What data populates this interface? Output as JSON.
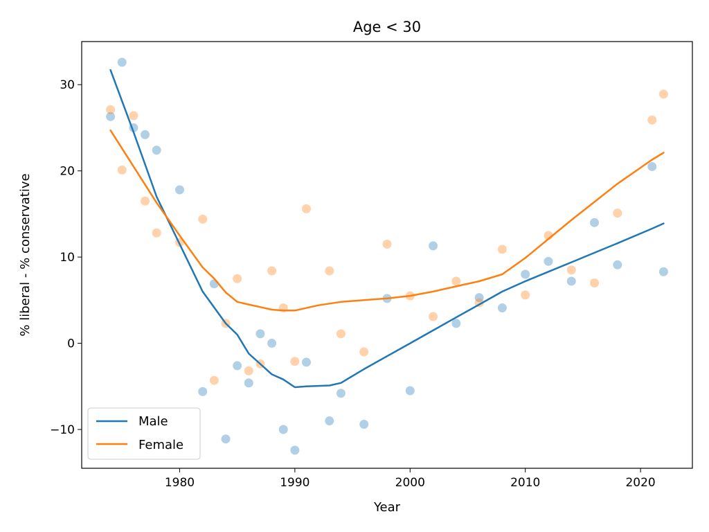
{
  "chart_data": {
    "type": "scatter",
    "title": "Age < 30",
    "xlabel": "Year",
    "ylabel": "% liberal - % conservative",
    "xlim": [
      1971.5,
      2024.5
    ],
    "ylim": [
      -14.5,
      35
    ],
    "xticks": [
      1980,
      1990,
      2000,
      2010,
      2020
    ],
    "xtick_labels": [
      "1980",
      "1990",
      "2000",
      "2010",
      "2020"
    ],
    "yticks": [
      -10,
      0,
      10,
      20,
      30
    ],
    "ytick_labels": [
      "−10",
      "0",
      "10",
      "20",
      "30"
    ],
    "grid": false,
    "legend_position": "lower-left",
    "legend": [
      "Male",
      "Female"
    ],
    "colors": {
      "Male": "#1f77b4",
      "Female": "#ff7f0e"
    },
    "series": [
      {
        "name": "Male",
        "kind": "scatter",
        "color": "#1f77b4",
        "points": [
          [
            1974,
            26.3
          ],
          [
            1975,
            32.6
          ],
          [
            1976,
            25.0
          ],
          [
            1977,
            24.2
          ],
          [
            1978,
            22.4
          ],
          [
            1980,
            17.8
          ],
          [
            1982,
            -5.6
          ],
          [
            1983,
            6.9
          ],
          [
            1984,
            -11.1
          ],
          [
            1985,
            -2.6
          ],
          [
            1986,
            -4.6
          ],
          [
            1987,
            1.1
          ],
          [
            1988,
            0.0
          ],
          [
            1989,
            -10.0
          ],
          [
            1990,
            -12.4
          ],
          [
            1991,
            -2.2
          ],
          [
            1993,
            -9.0
          ],
          [
            1994,
            -5.8
          ],
          [
            1996,
            -9.4
          ],
          [
            1998,
            5.2
          ],
          [
            2000,
            -5.5
          ],
          [
            2002,
            11.3
          ],
          [
            2004,
            2.3
          ],
          [
            2006,
            5.3
          ],
          [
            2008,
            4.1
          ],
          [
            2010,
            8.0
          ],
          [
            2012,
            9.5
          ],
          [
            2014,
            7.2
          ],
          [
            2016,
            14.0
          ],
          [
            2018,
            9.1
          ],
          [
            2021,
            20.5
          ],
          [
            2022,
            8.3
          ]
        ]
      },
      {
        "name": "Female",
        "kind": "scatter",
        "color": "#ff7f0e",
        "points": [
          [
            1974,
            27.1
          ],
          [
            1975,
            20.1
          ],
          [
            1976,
            26.4
          ],
          [
            1977,
            16.5
          ],
          [
            1978,
            12.8
          ],
          [
            1980,
            11.7
          ],
          [
            1982,
            14.4
          ],
          [
            1983,
            -4.3
          ],
          [
            1984,
            2.3
          ],
          [
            1985,
            7.5
          ],
          [
            1986,
            -3.2
          ],
          [
            1987,
            -2.4
          ],
          [
            1988,
            8.4
          ],
          [
            1989,
            4.1
          ],
          [
            1990,
            -2.1
          ],
          [
            1991,
            15.6
          ],
          [
            1993,
            8.4
          ],
          [
            1994,
            1.1
          ],
          [
            1996,
            -1.0
          ],
          [
            1998,
            11.5
          ],
          [
            2000,
            5.5
          ],
          [
            2002,
            3.1
          ],
          [
            2004,
            7.2
          ],
          [
            2006,
            4.7
          ],
          [
            2008,
            10.9
          ],
          [
            2010,
            5.6
          ],
          [
            2012,
            12.5
          ],
          [
            2014,
            8.5
          ],
          [
            2016,
            7.0
          ],
          [
            2018,
            15.1
          ],
          [
            2021,
            25.9
          ],
          [
            2022,
            28.9
          ]
        ]
      },
      {
        "name": "Male",
        "kind": "line",
        "color": "#1f77b4",
        "points": [
          [
            1974,
            31.7
          ],
          [
            1976,
            24.5
          ],
          [
            1978,
            17.0
          ],
          [
            1980,
            11.5
          ],
          [
            1982,
            6.0
          ],
          [
            1984,
            2.3
          ],
          [
            1985,
            1.0
          ],
          [
            1986,
            -1.2
          ],
          [
            1988,
            -3.6
          ],
          [
            1989,
            -4.2
          ],
          [
            1990,
            -5.1
          ],
          [
            1991,
            -5.0
          ],
          [
            1993,
            -4.9
          ],
          [
            1994,
            -4.6
          ],
          [
            1996,
            -3.0
          ],
          [
            1998,
            -1.5
          ],
          [
            2000,
            0.0
          ],
          [
            2002,
            1.5
          ],
          [
            2004,
            3.0
          ],
          [
            2006,
            4.5
          ],
          [
            2008,
            6.0
          ],
          [
            2010,
            7.2
          ],
          [
            2012,
            8.3
          ],
          [
            2014,
            9.4
          ],
          [
            2016,
            10.5
          ],
          [
            2018,
            11.6
          ],
          [
            2021,
            13.3
          ],
          [
            2022,
            13.9
          ]
        ]
      },
      {
        "name": "Female",
        "kind": "line",
        "color": "#ff7f0e",
        "points": [
          [
            1974,
            24.7
          ],
          [
            1976,
            20.5
          ],
          [
            1978,
            16.3
          ],
          [
            1980,
            12.5
          ],
          [
            1982,
            8.8
          ],
          [
            1983,
            7.5
          ],
          [
            1984,
            5.9
          ],
          [
            1985,
            4.8
          ],
          [
            1986,
            4.5
          ],
          [
            1988,
            3.9
          ],
          [
            1989,
            3.8
          ],
          [
            1990,
            3.8
          ],
          [
            1992,
            4.4
          ],
          [
            1994,
            4.8
          ],
          [
            1996,
            5.0
          ],
          [
            1998,
            5.2
          ],
          [
            2000,
            5.5
          ],
          [
            2002,
            6.0
          ],
          [
            2004,
            6.6
          ],
          [
            2006,
            7.2
          ],
          [
            2008,
            8.0
          ],
          [
            2010,
            9.9
          ],
          [
            2012,
            12.1
          ],
          [
            2014,
            14.3
          ],
          [
            2016,
            16.4
          ],
          [
            2018,
            18.5
          ],
          [
            2021,
            21.3
          ],
          [
            2022,
            22.1
          ]
        ]
      }
    ]
  }
}
